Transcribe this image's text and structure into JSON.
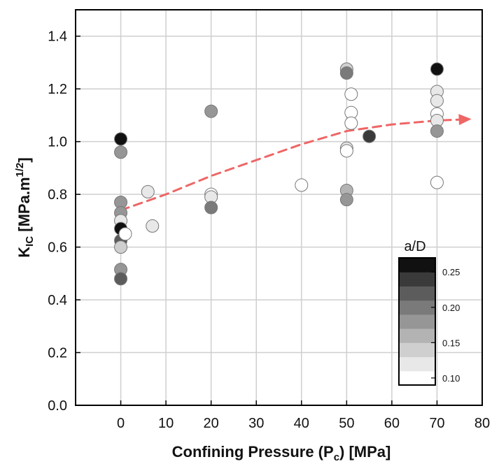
{
  "chart_data": {
    "type": "scatter",
    "xlabel": {
      "main": "Confining Pressure (P",
      "sub": "c",
      "tail": ") [MPa]"
    },
    "ylabel": {
      "main": "K",
      "sub": "IC",
      "mid": " [MPa.m",
      "sup": "1/2",
      "tail": "]"
    },
    "xlim": [
      -10,
      80
    ],
    "ylim": [
      0,
      1.5
    ],
    "xticks": [
      0,
      10,
      20,
      30,
      40,
      50,
      60,
      70,
      80
    ],
    "xtick_labels": [
      "0",
      "10",
      "20",
      "30",
      "40",
      "50",
      "60",
      "70",
      "80"
    ],
    "yticks": [
      0.0,
      0.2,
      0.4,
      0.6,
      0.8,
      1.0,
      1.2,
      1.4
    ],
    "ytick_labels": [
      "0.0",
      "0.2",
      "0.4",
      "0.6",
      "0.8",
      "1.0",
      "1.2",
      "1.4"
    ],
    "grid": true,
    "points": [
      {
        "x": 0,
        "y": 1.01,
        "aD": 0.26
      },
      {
        "x": 0,
        "y": 0.96,
        "aD": 0.19
      },
      {
        "x": 0,
        "y": 0.77,
        "aD": 0.17
      },
      {
        "x": 0,
        "y": 0.73,
        "aD": 0.18
      },
      {
        "x": 0,
        "y": 0.7,
        "aD": 0.12
      },
      {
        "x": 0,
        "y": 0.67,
        "aD": 0.26
      },
      {
        "x": 0,
        "y": 0.625,
        "aD": 0.22
      },
      {
        "x": 0,
        "y": 0.6,
        "aD": 0.13
      },
      {
        "x": 0,
        "y": 0.515,
        "aD": 0.18
      },
      {
        "x": 0,
        "y": 0.48,
        "aD": 0.22
      },
      {
        "x": 1,
        "y": 0.65,
        "aD": 0.1
      },
      {
        "x": 6,
        "y": 0.81,
        "aD": 0.11
      },
      {
        "x": 7,
        "y": 0.68,
        "aD": 0.12
      },
      {
        "x": 20,
        "y": 1.115,
        "aD": 0.17
      },
      {
        "x": 20,
        "y": 0.8,
        "aD": 0.1
      },
      {
        "x": 20,
        "y": 0.79,
        "aD": 0.11
      },
      {
        "x": 20,
        "y": 0.75,
        "aD": 0.21
      },
      {
        "x": 40,
        "y": 0.835,
        "aD": 0.1
      },
      {
        "x": 50,
        "y": 1.275,
        "aD": 0.15
      },
      {
        "x": 50,
        "y": 1.26,
        "aD": 0.2
      },
      {
        "x": 51,
        "y": 1.18,
        "aD": 0.1
      },
      {
        "x": 51,
        "y": 1.11,
        "aD": 0.1
      },
      {
        "x": 51,
        "y": 1.07,
        "aD": 0.1
      },
      {
        "x": 50,
        "y": 0.975,
        "aD": 0.11
      },
      {
        "x": 50,
        "y": 0.965,
        "aD": 0.1
      },
      {
        "x": 50,
        "y": 0.815,
        "aD": 0.16
      },
      {
        "x": 50,
        "y": 0.78,
        "aD": 0.18
      },
      {
        "x": 55,
        "y": 1.02,
        "aD": 0.24
      },
      {
        "x": 70,
        "y": 1.275,
        "aD": 0.26
      },
      {
        "x": 70,
        "y": 1.19,
        "aD": 0.11
      },
      {
        "x": 70,
        "y": 1.155,
        "aD": 0.11
      },
      {
        "x": 70,
        "y": 1.105,
        "aD": 0.1
      },
      {
        "x": 70,
        "y": 1.08,
        "aD": 0.12
      },
      {
        "x": 70,
        "y": 1.04,
        "aD": 0.17
      },
      {
        "x": 70,
        "y": 0.845,
        "aD": 0.1
      }
    ],
    "trend": {
      "style": "dashed-arrow",
      "color": "#ee6666",
      "points": [
        [
          0,
          0.74
        ],
        [
          10,
          0.8
        ],
        [
          20,
          0.87
        ],
        [
          30,
          0.93
        ],
        [
          40,
          0.99
        ],
        [
          50,
          1.04
        ],
        [
          60,
          1.065
        ],
        [
          70,
          1.08
        ],
        [
          77,
          1.085
        ]
      ]
    },
    "colorbar": {
      "title": "a/D",
      "min": 0.09,
      "max": 0.27,
      "levels": 9,
      "ticks": [
        0.1,
        0.15,
        0.2,
        0.25
      ],
      "tick_labels": [
        "0.10",
        "0.15",
        "0.20",
        "0.25"
      ],
      "position": "lower-right",
      "colors": [
        "#ffffff",
        "#e8e8e8",
        "#cfcfcf",
        "#b3b3b3",
        "#969696",
        "#7a7a7a",
        "#5c5c5c",
        "#3a3a3a",
        "#111111"
      ]
    }
  }
}
